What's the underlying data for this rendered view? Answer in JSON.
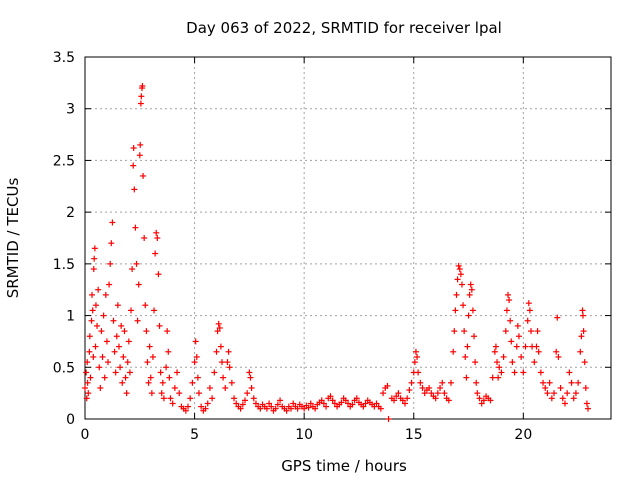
{
  "chart_data": {
    "type": "scatter",
    "title": "Day 063 of 2022, SRMTID for receiver lpal",
    "xlabel": "GPS time / hours",
    "ylabel": "SRMTID / TECUs",
    "xlim": [
      0,
      24
    ],
    "ylim": [
      0,
      3.5
    ],
    "xticks": [
      0,
      5,
      10,
      15,
      20
    ],
    "xtick_labels": [
      "0",
      "5",
      "10",
      "15",
      "20"
    ],
    "yticks": [
      0,
      0.5,
      1,
      1.5,
      2,
      2.5,
      3,
      3.5
    ],
    "ytick_labels": [
      "0",
      "0.5",
      "1",
      "1.5",
      "2",
      "2.5",
      "3",
      "3.5"
    ],
    "grid": true,
    "marker": "+",
    "color": "#ff0000",
    "series": [
      {
        "name": "lpal",
        "points": [
          [
            0.0,
            0.3
          ],
          [
            0.05,
            0.45
          ],
          [
            0.08,
            0.2
          ],
          [
            0.1,
            0.55
          ],
          [
            0.12,
            0.35
          ],
          [
            0.15,
            0.25
          ],
          [
            0.2,
            0.65
          ],
          [
            0.22,
            0.8
          ],
          [
            0.25,
            0.4
          ],
          [
            0.3,
            0.95
          ],
          [
            0.32,
            1.2
          ],
          [
            0.35,
            1.05
          ],
          [
            0.38,
            0.6
          ],
          [
            0.4,
            1.45
          ],
          [
            0.42,
            1.55
          ],
          [
            0.45,
            1.65
          ],
          [
            0.48,
            0.7
          ],
          [
            0.5,
            1.1
          ],
          [
            0.55,
            0.9
          ],
          [
            0.6,
            1.25
          ],
          [
            0.65,
            0.5
          ],
          [
            0.7,
            0.3
          ],
          [
            0.75,
            0.85
          ],
          [
            0.8,
            0.6
          ],
          [
            0.85,
            1.0
          ],
          [
            0.9,
            0.4
          ],
          [
            0.95,
            1.2
          ],
          [
            1.0,
            0.75
          ],
          [
            1.05,
            0.55
          ],
          [
            1.1,
            1.3
          ],
          [
            1.15,
            1.5
          ],
          [
            1.2,
            1.7
          ],
          [
            1.25,
            1.9
          ],
          [
            1.3,
            0.95
          ],
          [
            1.35,
            0.65
          ],
          [
            1.4,
            0.45
          ],
          [
            1.45,
            0.8
          ],
          [
            1.5,
            1.1
          ],
          [
            1.55,
            0.7
          ],
          [
            1.6,
            0.5
          ],
          [
            1.65,
            0.9
          ],
          [
            1.7,
            0.35
          ],
          [
            1.75,
            0.6
          ],
          [
            1.8,
            0.85
          ],
          [
            1.85,
            0.4
          ],
          [
            1.9,
            0.25
          ],
          [
            1.95,
            0.55
          ],
          [
            2.0,
            0.75
          ],
          [
            2.05,
            0.45
          ],
          [
            2.1,
            1.05
          ],
          [
            2.15,
            1.45
          ],
          [
            2.2,
            2.45
          ],
          [
            2.22,
            2.62
          ],
          [
            2.25,
            2.22
          ],
          [
            2.3,
            1.85
          ],
          [
            2.35,
            1.5
          ],
          [
            2.4,
            0.95
          ],
          [
            2.45,
            1.3
          ],
          [
            2.5,
            2.55
          ],
          [
            2.52,
            2.65
          ],
          [
            2.55,
            3.05
          ],
          [
            2.57,
            3.12
          ],
          [
            2.6,
            3.2
          ],
          [
            2.62,
            3.22
          ],
          [
            2.65,
            2.35
          ],
          [
            2.7,
            1.75
          ],
          [
            2.75,
            1.1
          ],
          [
            2.8,
            0.85
          ],
          [
            2.85,
            0.55
          ],
          [
            2.9,
            0.35
          ],
          [
            2.95,
            0.7
          ],
          [
            3.0,
            0.4
          ],
          [
            3.05,
            0.25
          ],
          [
            3.1,
            0.6
          ],
          [
            3.15,
            1.05
          ],
          [
            3.2,
            1.6
          ],
          [
            3.25,
            1.8
          ],
          [
            3.3,
            1.75
          ],
          [
            3.35,
            1.4
          ],
          [
            3.4,
            0.9
          ],
          [
            3.45,
            0.45
          ],
          [
            3.5,
            0.25
          ],
          [
            3.55,
            0.35
          ],
          [
            3.6,
            0.2
          ],
          [
            3.7,
            0.5
          ],
          [
            3.75,
            0.85
          ],
          [
            3.8,
            0.65
          ],
          [
            3.85,
            0.4
          ],
          [
            3.9,
            0.2
          ],
          [
            4.0,
            0.15
          ],
          [
            4.1,
            0.3
          ],
          [
            4.2,
            0.45
          ],
          [
            4.3,
            0.25
          ],
          [
            4.4,
            0.12
          ],
          [
            4.5,
            0.1
          ],
          [
            4.6,
            0.08
          ],
          [
            4.7,
            0.12
          ],
          [
            4.8,
            0.2
          ],
          [
            4.9,
            0.35
          ],
          [
            5.0,
            0.55
          ],
          [
            5.05,
            0.75
          ],
          [
            5.1,
            0.6
          ],
          [
            5.15,
            0.4
          ],
          [
            5.2,
            0.25
          ],
          [
            5.3,
            0.12
          ],
          [
            5.4,
            0.08
          ],
          [
            5.5,
            0.1
          ],
          [
            5.6,
            0.15
          ],
          [
            5.7,
            0.3
          ],
          [
            5.8,
            0.2
          ],
          [
            5.9,
            0.45
          ],
          [
            6.0,
            0.65
          ],
          [
            6.05,
            0.85
          ],
          [
            6.1,
            0.92
          ],
          [
            6.15,
            0.88
          ],
          [
            6.2,
            0.7
          ],
          [
            6.25,
            0.55
          ],
          [
            6.3,
            0.4
          ],
          [
            6.4,
            0.3
          ],
          [
            6.5,
            0.55
          ],
          [
            6.55,
            0.65
          ],
          [
            6.6,
            0.5
          ],
          [
            6.7,
            0.35
          ],
          [
            6.8,
            0.2
          ],
          [
            6.9,
            0.15
          ],
          [
            7.0,
            0.12
          ],
          [
            7.1,
            0.1
          ],
          [
            7.2,
            0.14
          ],
          [
            7.3,
            0.18
          ],
          [
            7.4,
            0.25
          ],
          [
            7.5,
            0.45
          ],
          [
            7.55,
            0.4
          ],
          [
            7.6,
            0.3
          ],
          [
            7.7,
            0.2
          ],
          [
            7.8,
            0.15
          ],
          [
            7.9,
            0.12
          ],
          [
            8.0,
            0.1
          ],
          [
            8.1,
            0.14
          ],
          [
            8.2,
            0.12
          ],
          [
            8.3,
            0.1
          ],
          [
            8.4,
            0.15
          ],
          [
            8.5,
            0.12
          ],
          [
            8.6,
            0.08
          ],
          [
            8.7,
            0.1
          ],
          [
            8.8,
            0.14
          ],
          [
            8.9,
            0.18
          ],
          [
            9.0,
            0.12
          ],
          [
            9.1,
            0.1
          ],
          [
            9.2,
            0.08
          ],
          [
            9.3,
            0.12
          ],
          [
            9.4,
            0.1
          ],
          [
            9.5,
            0.15
          ],
          [
            9.6,
            0.12
          ],
          [
            9.7,
            0.1
          ],
          [
            9.8,
            0.14
          ],
          [
            9.9,
            0.12
          ],
          [
            10.0,
            0.1
          ],
          [
            10.1,
            0.13
          ],
          [
            10.2,
            0.11
          ],
          [
            10.3,
            0.15
          ],
          [
            10.4,
            0.12
          ],
          [
            10.5,
            0.1
          ],
          [
            10.6,
            0.14
          ],
          [
            10.7,
            0.16
          ],
          [
            10.8,
            0.18
          ],
          [
            10.9,
            0.15
          ],
          [
            11.0,
            0.12
          ],
          [
            11.1,
            0.2
          ],
          [
            11.2,
            0.22
          ],
          [
            11.3,
            0.18
          ],
          [
            11.4,
            0.15
          ],
          [
            11.5,
            0.12
          ],
          [
            11.6,
            0.14
          ],
          [
            11.7,
            0.16
          ],
          [
            11.8,
            0.2
          ],
          [
            11.9,
            0.18
          ],
          [
            12.0,
            0.15
          ],
          [
            12.1,
            0.12
          ],
          [
            12.2,
            0.14
          ],
          [
            12.3,
            0.18
          ],
          [
            12.4,
            0.2
          ],
          [
            12.5,
            0.16
          ],
          [
            12.6,
            0.14
          ],
          [
            12.7,
            0.12
          ],
          [
            12.8,
            0.15
          ],
          [
            12.9,
            0.18
          ],
          [
            13.0,
            0.16
          ],
          [
            13.1,
            0.14
          ],
          [
            13.2,
            0.12
          ],
          [
            13.3,
            0.15
          ],
          [
            13.4,
            0.12
          ],
          [
            13.5,
            0.1
          ],
          [
            13.6,
            0.25
          ],
          [
            13.7,
            0.3
          ],
          [
            13.8,
            0.32
          ],
          [
            13.85,
            0.0
          ],
          [
            14.0,
            0.2
          ],
          [
            14.1,
            0.18
          ],
          [
            14.2,
            0.22
          ],
          [
            14.3,
            0.25
          ],
          [
            14.4,
            0.2
          ],
          [
            14.5,
            0.18
          ],
          [
            14.6,
            0.15
          ],
          [
            14.7,
            0.2
          ],
          [
            14.8,
            0.28
          ],
          [
            14.9,
            0.35
          ],
          [
            15.0,
            0.45
          ],
          [
            15.05,
            0.55
          ],
          [
            15.1,
            0.65
          ],
          [
            15.15,
            0.6
          ],
          [
            15.2,
            0.45
          ],
          [
            15.3,
            0.35
          ],
          [
            15.4,
            0.3
          ],
          [
            15.5,
            0.25
          ],
          [
            15.6,
            0.28
          ],
          [
            15.7,
            0.3
          ],
          [
            15.8,
            0.25
          ],
          [
            15.9,
            0.22
          ],
          [
            16.0,
            0.2
          ],
          [
            16.1,
            0.25
          ],
          [
            16.2,
            0.3
          ],
          [
            16.3,
            0.35
          ],
          [
            16.4,
            0.25
          ],
          [
            16.5,
            0.2
          ],
          [
            16.6,
            0.18
          ],
          [
            16.7,
            0.35
          ],
          [
            16.8,
            0.65
          ],
          [
            16.85,
            0.85
          ],
          [
            16.9,
            1.05
          ],
          [
            16.95,
            1.2
          ],
          [
            17.0,
            1.35
          ],
          [
            17.05,
            1.48
          ],
          [
            17.1,
            1.45
          ],
          [
            17.15,
            1.4
          ],
          [
            17.2,
            1.3
          ],
          [
            17.25,
            1.1
          ],
          [
            17.3,
            0.85
          ],
          [
            17.35,
            0.6
          ],
          [
            17.4,
            0.4
          ],
          [
            17.45,
            0.7
          ],
          [
            17.5,
            1.0
          ],
          [
            17.55,
            1.2
          ],
          [
            17.6,
            1.3
          ],
          [
            17.65,
            1.25
          ],
          [
            17.7,
            1.05
          ],
          [
            17.75,
            0.8
          ],
          [
            17.8,
            0.55
          ],
          [
            17.85,
            0.35
          ],
          [
            17.9,
            0.25
          ],
          [
            18.0,
            0.2
          ],
          [
            18.1,
            0.15
          ],
          [
            18.2,
            0.18
          ],
          [
            18.3,
            0.22
          ],
          [
            18.4,
            0.2
          ],
          [
            18.5,
            0.18
          ],
          [
            18.6,
            0.4
          ],
          [
            18.7,
            0.65
          ],
          [
            18.75,
            0.7
          ],
          [
            18.8,
            0.55
          ],
          [
            18.85,
            0.4
          ],
          [
            18.9,
            0.5
          ],
          [
            19.0,
            0.45
          ],
          [
            19.1,
            0.6
          ],
          [
            19.2,
            0.85
          ],
          [
            19.25,
            1.05
          ],
          [
            19.3,
            1.2
          ],
          [
            19.35,
            1.15
          ],
          [
            19.4,
            0.95
          ],
          [
            19.45,
            0.75
          ],
          [
            19.5,
            0.55
          ],
          [
            19.6,
            0.45
          ],
          [
            19.7,
            0.7
          ],
          [
            19.75,
            0.9
          ],
          [
            19.8,
            0.8
          ],
          [
            19.9,
            0.6
          ],
          [
            20.0,
            0.45
          ],
          [
            20.1,
            0.7
          ],
          [
            20.2,
            0.95
          ],
          [
            20.25,
            1.12
          ],
          [
            20.3,
            1.05
          ],
          [
            20.35,
            0.85
          ],
          [
            20.4,
            0.7
          ],
          [
            20.5,
            0.55
          ],
          [
            20.6,
            0.7
          ],
          [
            20.65,
            0.85
          ],
          [
            20.7,
            0.65
          ],
          [
            20.8,
            0.45
          ],
          [
            20.9,
            0.35
          ],
          [
            21.0,
            0.3
          ],
          [
            21.1,
            0.25
          ],
          [
            21.2,
            0.35
          ],
          [
            21.3,
            0.2
          ],
          [
            21.4,
            0.25
          ],
          [
            21.5,
            0.65
          ],
          [
            21.55,
            0.98
          ],
          [
            21.6,
            0.6
          ],
          [
            21.7,
            0.3
          ],
          [
            21.8,
            0.2
          ],
          [
            21.9,
            0.15
          ],
          [
            22.0,
            0.25
          ],
          [
            22.1,
            0.45
          ],
          [
            22.2,
            0.35
          ],
          [
            22.3,
            0.2
          ],
          [
            22.4,
            0.25
          ],
          [
            22.5,
            0.35
          ],
          [
            22.6,
            0.65
          ],
          [
            22.65,
            0.8
          ],
          [
            22.7,
            1.05
          ],
          [
            22.72,
            1.0
          ],
          [
            22.75,
            0.85
          ],
          [
            22.8,
            0.55
          ],
          [
            22.85,
            0.3
          ],
          [
            22.9,
            0.15
          ],
          [
            22.95,
            0.1
          ]
        ]
      }
    ]
  }
}
